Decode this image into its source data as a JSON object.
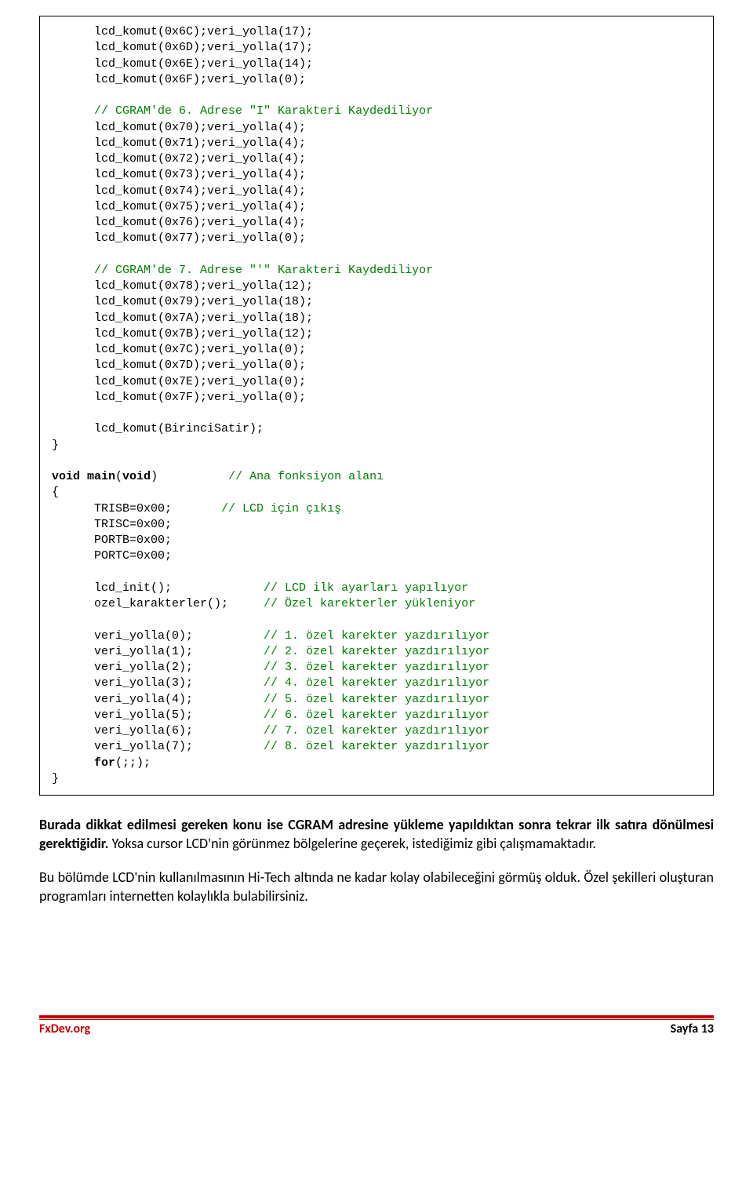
{
  "code": {
    "l1": "      lcd_komut(0x6C);veri_yolla(17);",
    "l2": "      lcd_komut(0x6D);veri_yolla(17);",
    "l3": "      lcd_komut(0x6E);veri_yolla(14);",
    "l4": "      lcd_komut(0x6F);veri_yolla(0);",
    "blank1": "",
    "c1": "      // CGRAM'de 6. Adrese \"I\" Karakteri Kaydediliyor",
    "l5": "      lcd_komut(0x70);veri_yolla(4);",
    "l6": "      lcd_komut(0x71);veri_yolla(4);",
    "l7": "      lcd_komut(0x72);veri_yolla(4);",
    "l8": "      lcd_komut(0x73);veri_yolla(4);",
    "l9": "      lcd_komut(0x74);veri_yolla(4);",
    "l10": "      lcd_komut(0x75);veri_yolla(4);",
    "l11": "      lcd_komut(0x76);veri_yolla(4);",
    "l12": "      lcd_komut(0x77);veri_yolla(0);",
    "blank2": "",
    "c2": "      // CGRAM'de 7. Adrese \"'\" Karakteri Kaydediliyor",
    "l13": "      lcd_komut(0x78);veri_yolla(12);",
    "l14": "      lcd_komut(0x79);veri_yolla(18);",
    "l15": "      lcd_komut(0x7A);veri_yolla(18);",
    "l16": "      lcd_komut(0x7B);veri_yolla(12);",
    "l17": "      lcd_komut(0x7C);veri_yolla(0);",
    "l18": "      lcd_komut(0x7D);veri_yolla(0);",
    "l19": "      lcd_komut(0x7E);veri_yolla(0);",
    "l20": "      lcd_komut(0x7F);veri_yolla(0);",
    "blank3": "",
    "l21": "      lcd_komut(BirinciSatir);",
    "l22": "}",
    "blank4": "",
    "kw_void1": "void",
    "kw_main": " main",
    "paren_open": "(",
    "kw_void2": "void",
    "paren_close_tab": ")          ",
    "c3": "// Ana fonksiyon alanı",
    "l23": "{",
    "l24a": "      TRISB=0x00;       ",
    "c4": "// LCD için çıkış",
    "l25": "      TRISC=0x00;",
    "l26": "      PORTB=0x00;",
    "l27": "      PORTC=0x00;",
    "blank5": "",
    "l28a": "      lcd_init();             ",
    "c5": "// LCD ilk ayarları yapılıyor",
    "l29a": "      ozel_karakterler();     ",
    "c6": "// Özel karekterler yükleniyor",
    "blank6": "",
    "l30a": "      veri_yolla(0);          ",
    "c7": "// 1. özel karekter yazdırılıyor",
    "l31a": "      veri_yolla(1);          ",
    "c8": "// 2. özel karekter yazdırılıyor",
    "l32a": "      veri_yolla(2);          ",
    "c9": "// 3. özel karekter yazdırılıyor",
    "l33a": "      veri_yolla(3);          ",
    "c10": "// 4. özel karekter yazdırılıyor",
    "l34a": "      veri_yolla(4);          ",
    "c11": "// 5. özel karekter yazdırılıyor",
    "l35a": "      veri_yolla(5);          ",
    "c12": "// 6. özel karekter yazdırılıyor",
    "l36a": "      veri_yolla(6);          ",
    "c13": "// 7. özel karekter yazdırılıyor",
    "l37a": "      veri_yolla(7);          ",
    "c14": "// 8. özel karekter yazdırılıyor",
    "l38a": "      ",
    "kw_for": "for",
    "l38b": "(;;);",
    "l39": "}"
  },
  "para1_bold": "Burada dikkat edilmesi gereken konu ise CGRAM adresine yükleme yapıldıktan sonra tekrar ilk satıra dönülmesi gerektiğidir.",
  "para1_rest": " Yoksa cursor LCD'nin görünmez bölgelerine geçerek, istediğimiz gibi çalışmamaktadır.",
  "para2": "Bu bölümde LCD'nin kullanılmasının Hi-Tech altında ne kadar kolay olabileceğini görmüş olduk. Özel şekilleri oluşturan programları internetten kolaylıkla bulabilirsiniz.",
  "footer_left": "FxDev.org",
  "footer_right": "Sayfa 13"
}
